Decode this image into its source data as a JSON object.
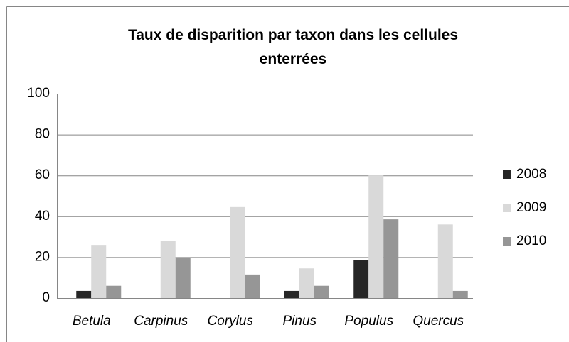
{
  "chart_data": {
    "type": "bar",
    "title": "Taux de disparition par taxon dans les cellules enterrées",
    "categories": [
      "Betula",
      "Carpinus",
      "Corylus",
      "Pinus",
      "Populus",
      "Quercus"
    ],
    "series": [
      {
        "name": "2008",
        "color": "#262626",
        "values": [
          3.5,
          0,
          0,
          3.5,
          18.5,
          0
        ]
      },
      {
        "name": "2009",
        "color": "#d9d9d9",
        "values": [
          26,
          28,
          44.5,
          14.5,
          60,
          36
        ]
      },
      {
        "name": "2010",
        "color": "#969696",
        "values": [
          6,
          20,
          11.5,
          6,
          38.5,
          3.5
        ]
      }
    ],
    "ylim": [
      0,
      100
    ],
    "yticks": [
      0,
      20,
      40,
      60,
      80,
      100
    ],
    "grid": true,
    "legend": "right"
  }
}
